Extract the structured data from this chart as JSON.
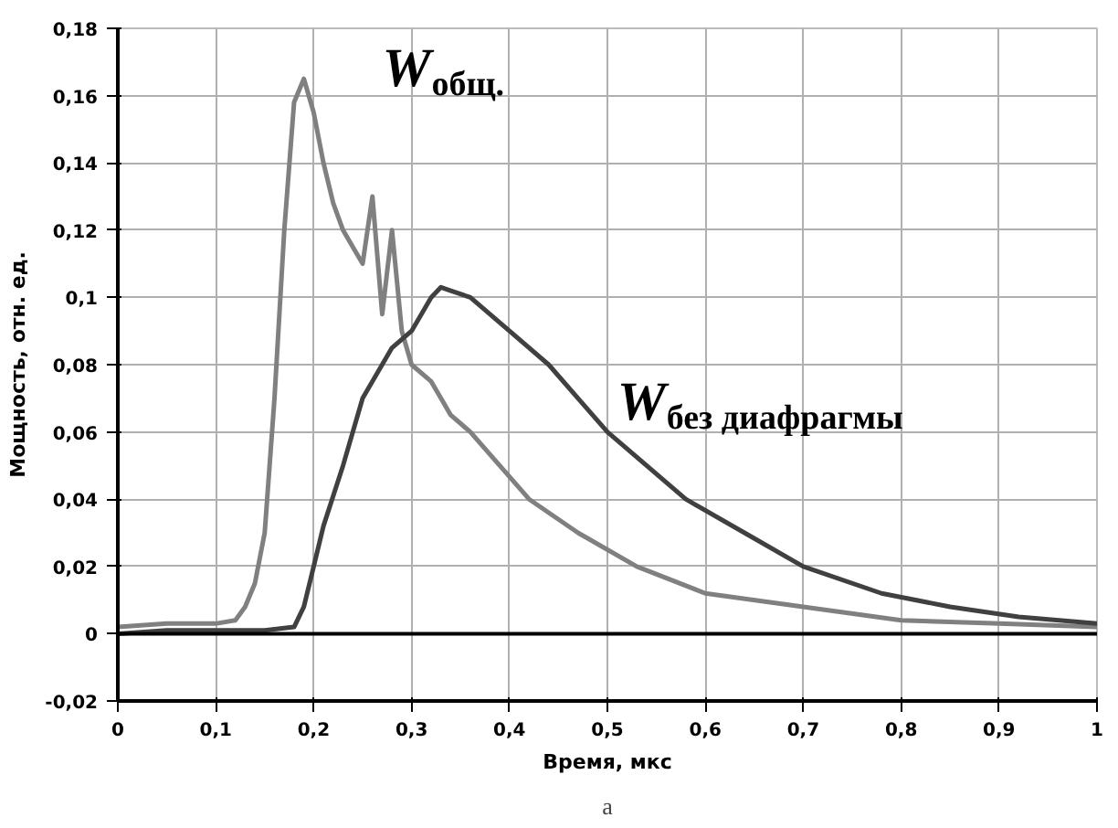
{
  "chart_data": {
    "type": "line",
    "xlabel": "Время, мкс",
    "ylabel": "Мощность, отн. ед.",
    "xlim": [
      0,
      1
    ],
    "ylim": [
      -0.02,
      0.18
    ],
    "xticks": [
      0,
      {
        "value": 0.1,
        "label": "0,1"
      },
      {
        "value": 0.2,
        "label": "0,2"
      },
      {
        "value": 0.3,
        "label": "0,3"
      },
      {
        "value": 0.4,
        "label": "0,4"
      },
      {
        "value": 0.5,
        "label": "0,5"
      },
      {
        "value": 0.6,
        "label": "0,6"
      },
      {
        "value": 0.7,
        "label": "0,7"
      },
      {
        "value": 0.8,
        "label": "0,8"
      },
      {
        "value": 0.9,
        "label": "0,9"
      },
      1
    ],
    "yticks": [
      {
        "value": -0.02,
        "label": "-0,02"
      },
      0,
      {
        "value": 0.02,
        "label": "0,02"
      },
      {
        "value": 0.04,
        "label": "0,04"
      },
      {
        "value": 0.06,
        "label": "0,06"
      },
      {
        "value": 0.08,
        "label": "0,08"
      },
      {
        "value": 0.1,
        "label": "0,1"
      },
      {
        "value": 0.12,
        "label": "0,12"
      },
      {
        "value": 0.14,
        "label": "0,14"
      },
      {
        "value": 0.16,
        "label": "0,16"
      },
      {
        "value": 0.18,
        "label": "0,18"
      }
    ],
    "grid": true,
    "line_style": "solid",
    "marker": "none",
    "annotations": [
      "а"
    ],
    "series": [
      {
        "name": "W$_{общ.}$",
        "color": "#808080",
        "x": [
          0,
          0.05,
          0.1,
          0.12,
          0.13,
          0.14,
          0.15,
          0.16,
          0.17,
          0.18,
          0.19,
          0.2,
          0.21,
          0.22,
          0.23,
          0.24,
          0.25,
          0.26,
          0.27,
          0.28,
          0.29,
          0.3,
          0.32,
          0.33,
          0.34,
          0.36,
          0.39,
          0.42,
          0.47,
          0.53,
          0.6,
          0.7,
          0.8,
          0.9,
          1
        ],
        "values": [
          0.002,
          0.003,
          0.003,
          0.004,
          0.008,
          0.015,
          0.03,
          0.07,
          0.12,
          0.158,
          0.165,
          0.155,
          0.14,
          0.128,
          0.12,
          0.115,
          0.11,
          0.13,
          0.095,
          0.12,
          0.09,
          0.08,
          0.075,
          0.07,
          0.065,
          0.06,
          0.05,
          0.04,
          0.03,
          0.02,
          0.012,
          0.008,
          0.004,
          0.003,
          0.002
        ]
      },
      {
        "name": "W$_{без диафрагмы}$",
        "color": "#404040",
        "x": [
          0,
          0.05,
          0.1,
          0.15,
          0.18,
          0.19,
          0.2,
          0.21,
          0.23,
          0.25,
          0.28,
          0.3,
          0.32,
          0.33,
          0.34,
          0.36,
          0.4,
          0.44,
          0.47,
          0.5,
          0.54,
          0.58,
          0.64,
          0.7,
          0.78,
          0.85,
          0.92,
          1
        ],
        "values": [
          0,
          0.001,
          0.001,
          0.001,
          0.002,
          0.008,
          0.02,
          0.032,
          0.05,
          0.07,
          0.085,
          0.09,
          0.1,
          0.103,
          0.102,
          0.1,
          0.09,
          0.08,
          0.07,
          0.06,
          0.05,
          0.04,
          0.03,
          0.02,
          0.012,
          0.008,
          0.005,
          0.003
        ]
      }
    ]
  }
}
